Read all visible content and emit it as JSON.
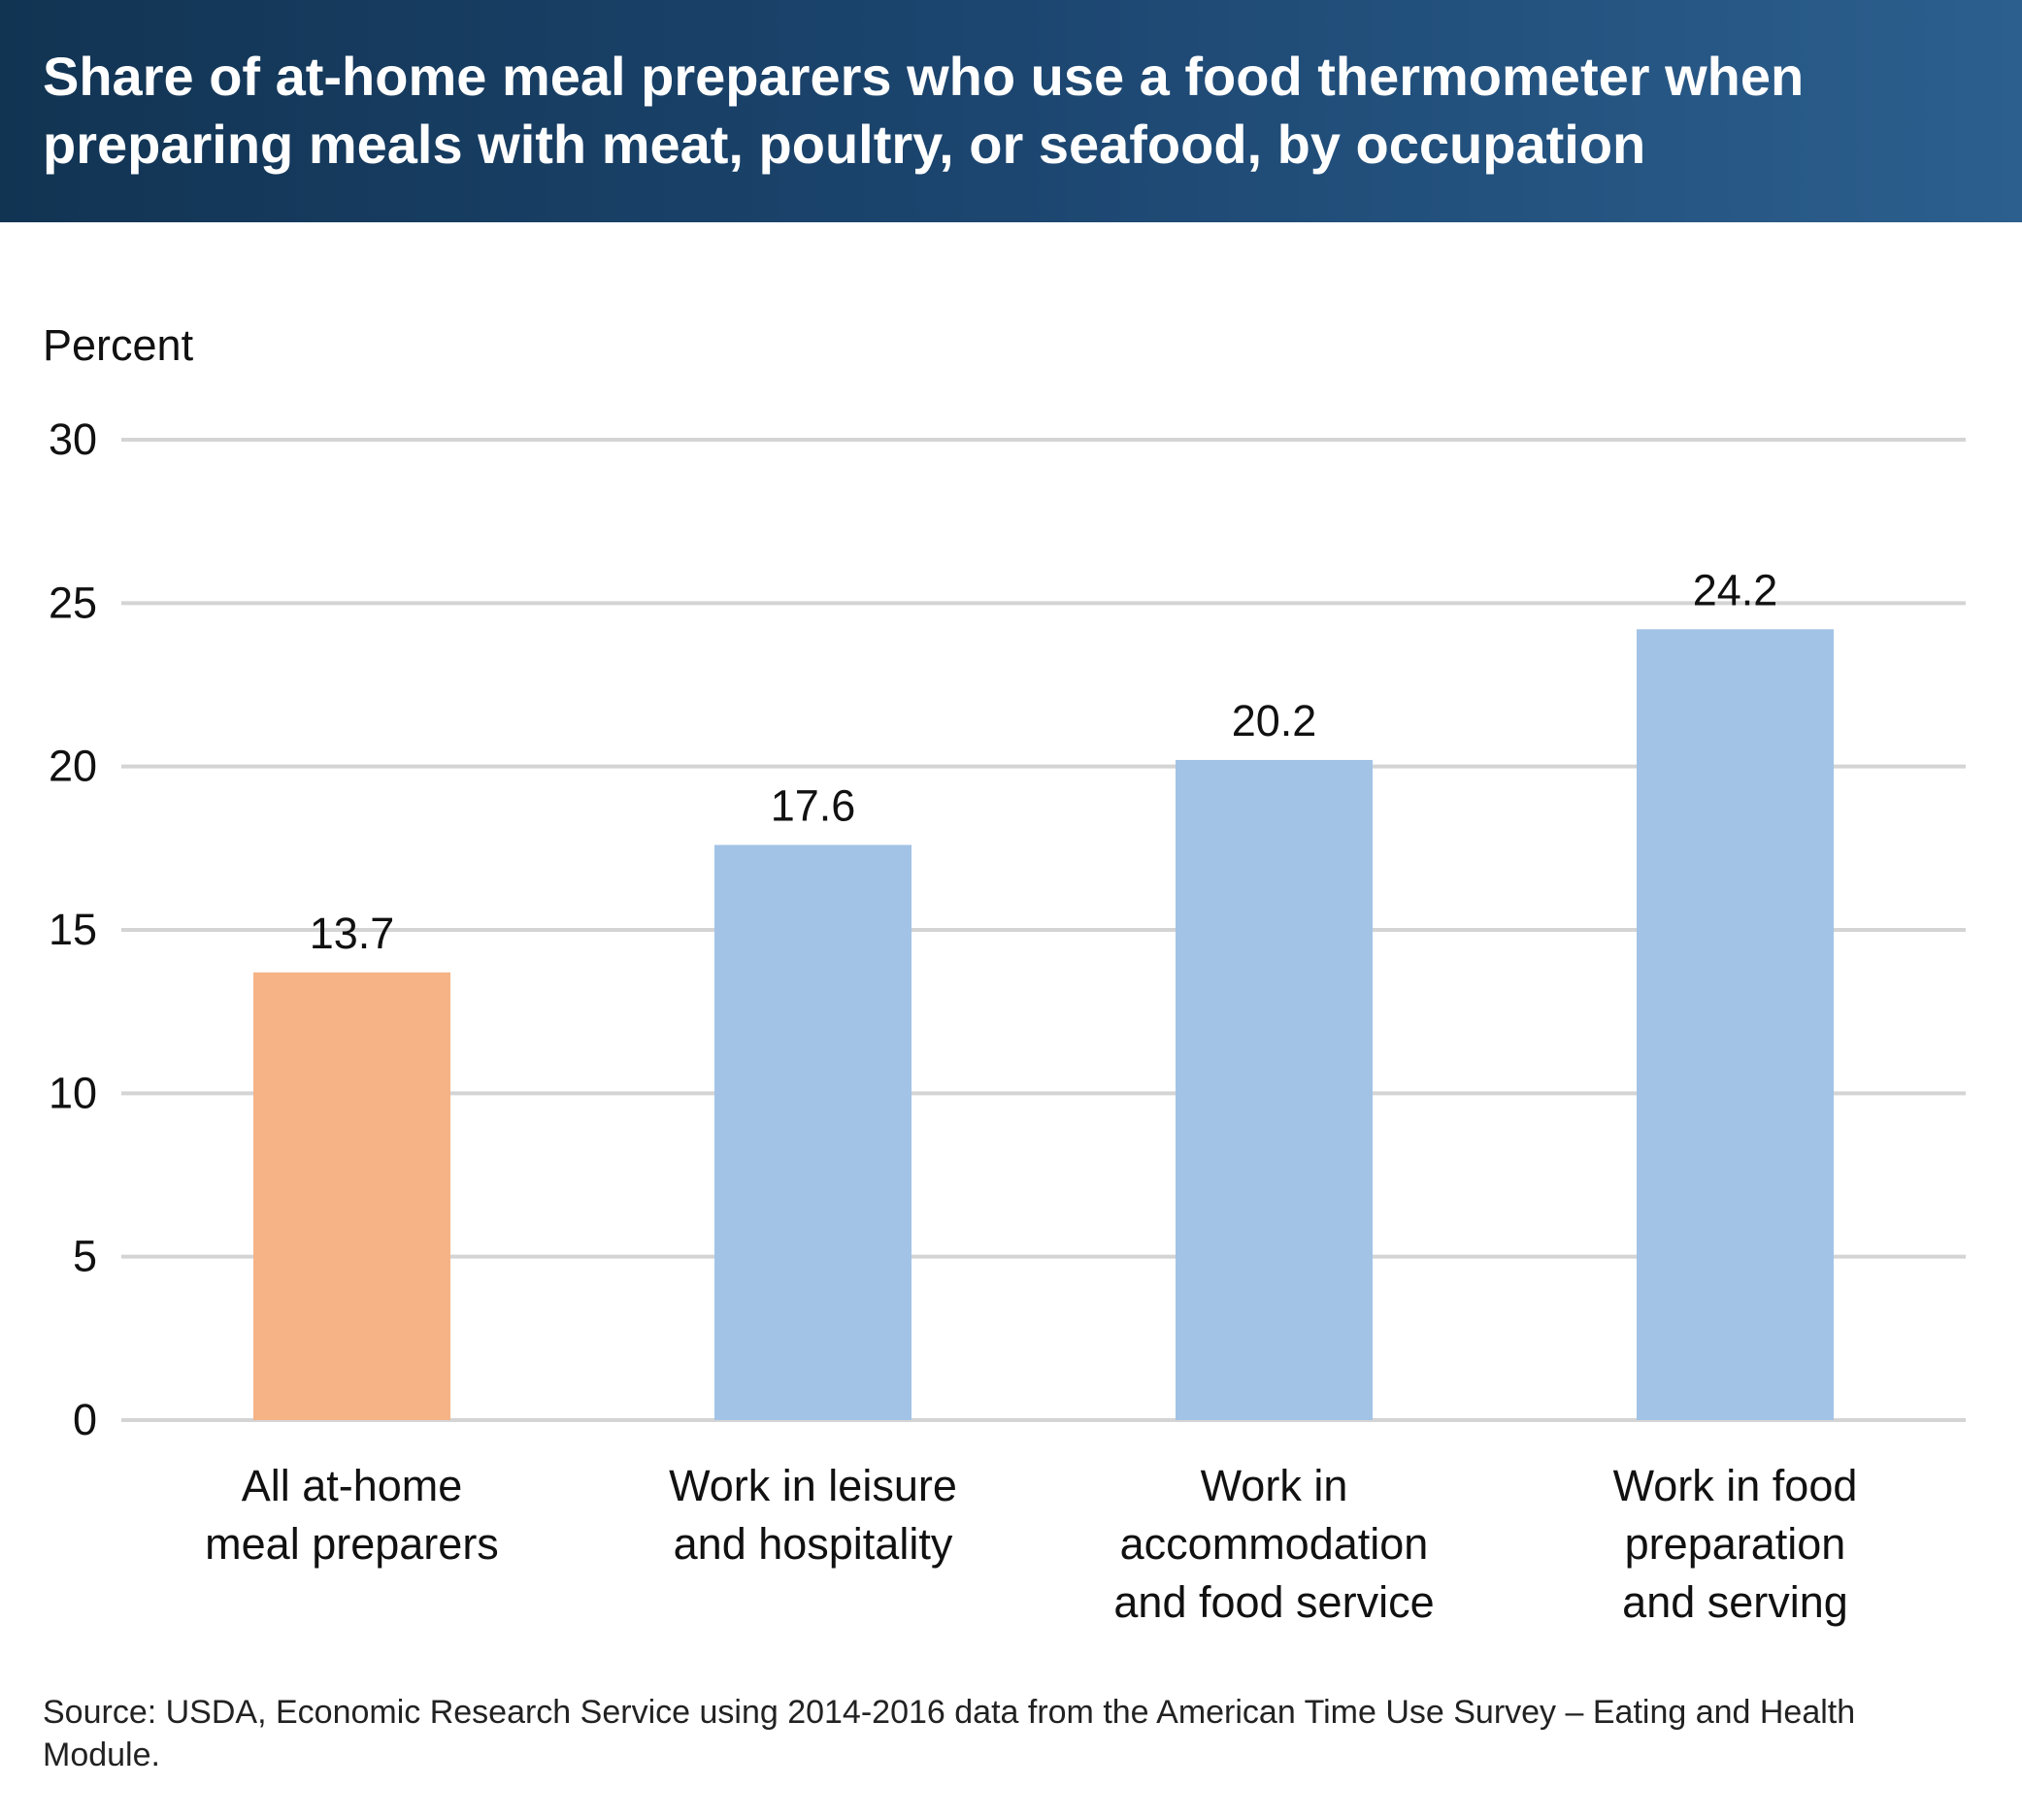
{
  "header": {
    "title": "Share of at-home meal preparers who use a food thermometer when preparing meals with meat, poultry, or seafood, by occupation"
  },
  "source": "Source: USDA, Economic Research Service using 2014-2016 data from the American Time Use Survey – Eating and Health Module.",
  "colors": {
    "header": "#1c4670",
    "highlight_bar": "#f5b386",
    "bar": "#a2c3e6",
    "gridline": "#d4d4d4"
  },
  "chart_data": {
    "type": "bar",
    "title": "Share of at-home meal preparers who use a food thermometer when preparing meals with meat, poultry, or seafood, by occupation",
    "ylabel": "Percent",
    "xlabel": "",
    "ylim": [
      0,
      30
    ],
    "yticks": [
      0,
      5,
      10,
      15,
      20,
      25,
      30
    ],
    "grid": true,
    "categories": [
      [
        "All at-home",
        "meal preparers"
      ],
      [
        "Work in leisure",
        "and hospitality"
      ],
      [
        "Work in",
        "accommodation",
        "and food service"
      ],
      [
        "Work in food",
        "preparation",
        "and serving"
      ]
    ],
    "values": [
      13.7,
      17.6,
      20.2,
      24.2
    ],
    "value_labels": [
      "13.7",
      "17.6",
      "20.2",
      "24.2"
    ],
    "bar_colors": [
      "#f5b386",
      "#a2c3e6",
      "#a2c3e6",
      "#a2c3e6"
    ]
  }
}
